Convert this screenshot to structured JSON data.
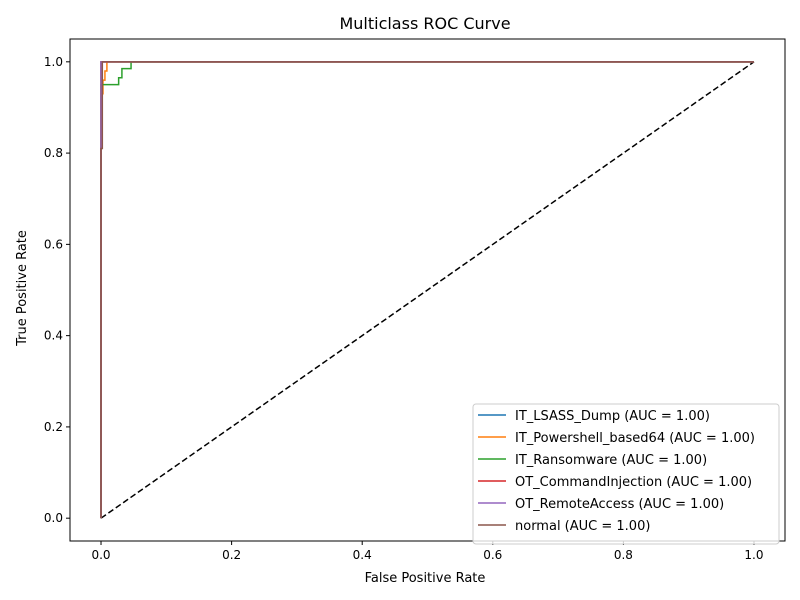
{
  "chart_data": {
    "type": "line",
    "title": "Multiclass ROC Curve",
    "xlabel": "False Positive Rate",
    "ylabel": "True Positive Rate",
    "xlim": [
      -0.0475,
      1.0475
    ],
    "ylim": [
      -0.05,
      1.05
    ],
    "xticks": [
      0.0,
      0.2,
      0.4,
      0.6,
      0.8,
      1.0
    ],
    "xtick_labels": [
      "0.0",
      "0.2",
      "0.4",
      "0.6",
      "0.8",
      "1.0"
    ],
    "yticks": [
      0.0,
      0.2,
      0.4,
      0.6,
      0.8,
      1.0
    ],
    "ytick_labels": [
      "0.0",
      "0.2",
      "0.4",
      "0.6",
      "0.8",
      "1.0"
    ],
    "grid": false,
    "legend_position": "lower-right",
    "series": [
      {
        "name": "IT_LSASS_Dump (AUC = 1.00)",
        "color": "#1f77b4",
        "x": [
          0,
          0,
          1
        ],
        "y": [
          0,
          1,
          1
        ]
      },
      {
        "name": "IT_Powershell_based64 (AUC = 1.00)",
        "color": "#ff7f0e",
        "x": [
          0,
          0,
          0.003,
          0.003,
          0.006,
          0.006,
          0.009,
          0.009,
          1
        ],
        "y": [
          0,
          0.93,
          0.93,
          0.96,
          0.96,
          0.98,
          0.98,
          1,
          1
        ]
      },
      {
        "name": "IT_Ransomware (AUC = 1.00)",
        "color": "#2ca02c",
        "x": [
          0,
          0,
          0.027,
          0.027,
          0.032,
          0.032,
          0.046,
          0.046,
          1
        ],
        "y": [
          0,
          0.95,
          0.95,
          0.965,
          0.965,
          0.985,
          0.985,
          1,
          1
        ]
      },
      {
        "name": "OT_CommandInjection (AUC = 1.00)",
        "color": "#d62728",
        "x": [
          0,
          0,
          1
        ],
        "y": [
          0,
          1,
          1
        ]
      },
      {
        "name": "OT_RemoteAccess (AUC = 1.00)",
        "color": "#9467bd",
        "x": [
          0,
          0,
          1
        ],
        "y": [
          0,
          1,
          1
        ]
      },
      {
        "name": "normal (AUC = 1.00)",
        "color": "#8c564b",
        "x": [
          0,
          0,
          0.002,
          0.002,
          1
        ],
        "y": [
          0,
          0.81,
          0.81,
          1,
          1
        ]
      }
    ],
    "reference_line": {
      "x": [
        0,
        1
      ],
      "y": [
        0,
        1
      ],
      "color": "#000000",
      "style": "dashed"
    }
  }
}
